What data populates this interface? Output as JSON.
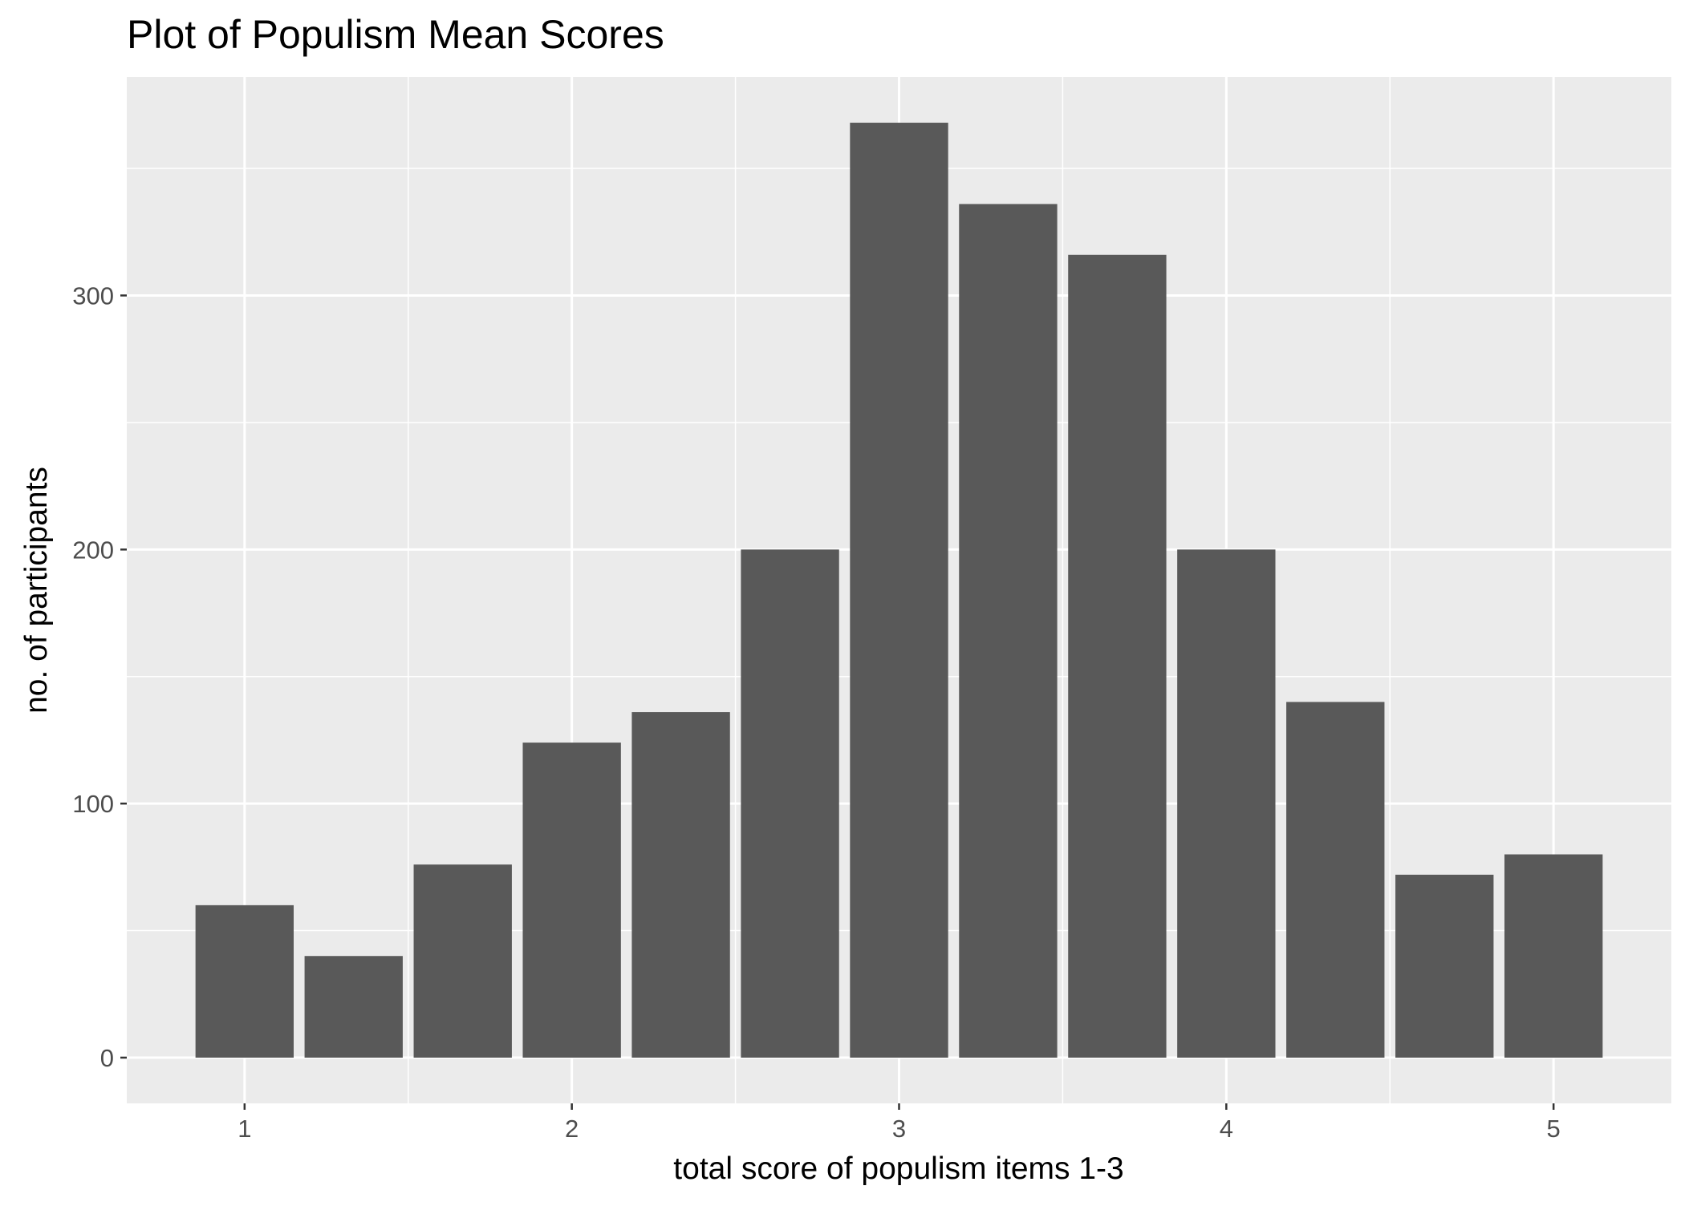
{
  "chart_data": {
    "type": "bar",
    "title": "Plot of Populism Mean Scores",
    "xlabel": "total score of populism items 1-3",
    "ylabel": "no. of participants",
    "x": [
      1.0,
      1.3333,
      1.6667,
      2.0,
      2.3333,
      2.6667,
      3.0,
      3.3333,
      3.6667,
      4.0,
      4.3333,
      4.6667,
      5.0
    ],
    "values": [
      60,
      40,
      76,
      124,
      136,
      200,
      368,
      336,
      316,
      200,
      140,
      72,
      80
    ],
    "xlim": [
      0.64,
      5.36
    ],
    "ylim": [
      -18,
      386
    ],
    "x_ticks": [
      1,
      2,
      3,
      4,
      5
    ],
    "x_tick_labels": [
      "1",
      "2",
      "3",
      "4",
      "5"
    ],
    "y_ticks": [
      0,
      100,
      200,
      300
    ],
    "y_tick_labels": [
      "0",
      "100",
      "200",
      "300"
    ],
    "bar_width_units": 0.3,
    "grid": true,
    "colors": {
      "panel_background": "#ebebeb",
      "grid_line": "#ffffff",
      "bar_fill": "#595959",
      "tick_text": "#4d4d4d",
      "tick_mark": "#333333",
      "title_text": "#000000"
    }
  }
}
